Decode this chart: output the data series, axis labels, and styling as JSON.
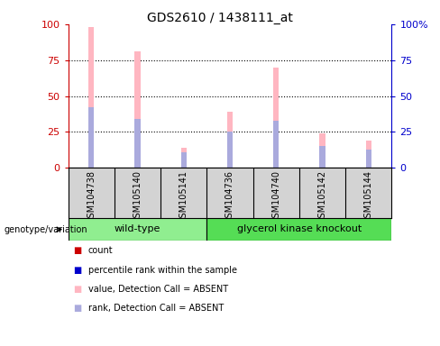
{
  "title": "GDS2610 / 1438111_at",
  "samples": [
    "GSM104738",
    "GSM105140",
    "GSM105141",
    "GSM104736",
    "GSM104740",
    "GSM105142",
    "GSM105144"
  ],
  "pink_bars": [
    98,
    81,
    14,
    39,
    70,
    24,
    19
  ],
  "blue_bars": [
    42,
    34,
    11,
    25,
    33,
    15,
    13
  ],
  "pink_color": "#ffb6c1",
  "blue_color": "#aaaadd",
  "red_color": "#cc0000",
  "dark_blue_color": "#0000cc",
  "ylim": [
    0,
    100
  ],
  "yticks": [
    0,
    25,
    50,
    75,
    100
  ],
  "grid_lines": [
    25,
    50,
    75
  ],
  "bar_width": 0.12,
  "wt_color": "#90ee90",
  "gk_color": "#55dd55",
  "box_color": "#d3d3d3",
  "legend_colors": [
    "#cc0000",
    "#0000cc",
    "#ffb6c1",
    "#aaaadd"
  ],
  "legend_labels": [
    "count",
    "percentile rank within the sample",
    "value, Detection Call = ABSENT",
    "rank, Detection Call = ABSENT"
  ]
}
